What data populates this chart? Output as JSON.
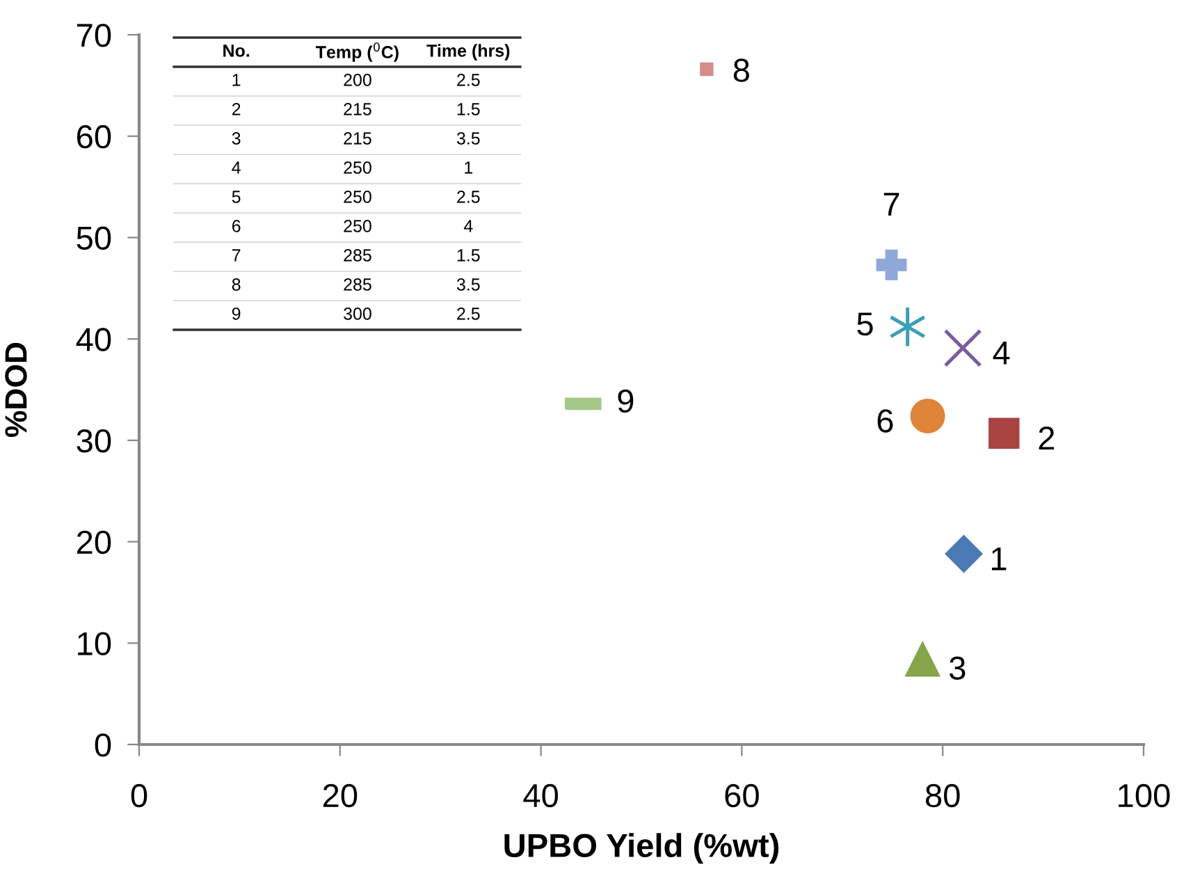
{
  "chart_data": {
    "type": "scatter",
    "xlabel": "UPBO Yield (%wt)",
    "ylabel": "%DOD",
    "xlim": [
      0,
      100
    ],
    "ylim": [
      0,
      70
    ],
    "xticks": [
      0,
      20,
      40,
      60,
      80,
      100
    ],
    "yticks": [
      0,
      10,
      20,
      30,
      40,
      50,
      60,
      70
    ],
    "grid": false,
    "series": [
      {
        "name": "1",
        "color": "#4a7ab5",
        "marker": "diamond",
        "x": [
          82.1
        ],
        "values": [
          18.8
        ]
      },
      {
        "name": "2",
        "color": "#a94442",
        "marker": "square",
        "x": [
          86.1
        ],
        "values": [
          30.7
        ]
      },
      {
        "name": "3",
        "color": "#86a44a",
        "marker": "triangle",
        "x": [
          78.0
        ],
        "values": [
          8.4
        ]
      },
      {
        "name": "4",
        "color": "#7a5c9e",
        "marker": "cross",
        "x": [
          82.0
        ],
        "values": [
          39.1
        ]
      },
      {
        "name": "5",
        "color": "#3b9fb5",
        "marker": "cross",
        "x": [
          76.5
        ],
        "values": [
          41.2
        ]
      },
      {
        "name": "6",
        "color": "#df8539",
        "marker": "circle",
        "x": [
          78.5
        ],
        "values": [
          32.4
        ]
      },
      {
        "name": "7",
        "color": "#8fa8d8",
        "marker": "cross",
        "x": [
          74.9
        ],
        "values": [
          47.3
        ]
      },
      {
        "name": "8",
        "color": "#d48c8c",
        "marker": "square",
        "x": [
          56.5
        ],
        "values": [
          66.6
        ]
      },
      {
        "name": "9",
        "color": "#a6c78a",
        "marker": "square",
        "x": [
          44.2
        ],
        "values": [
          33.6
        ]
      }
    ],
    "annotations": [
      "No.",
      "Temp ($^{0}$C)",
      "Time (hrs)",
      "1",
      "200",
      "2.5",
      "2",
      "215",
      "1.5",
      "3",
      "215",
      "3.5",
      "4",
      "250",
      "1",
      "5",
      "250",
      "2.5",
      "6",
      "250",
      "4",
      "7",
      "285",
      "1.5",
      "8",
      "285",
      "3.5",
      "9",
      "300",
      "2.5"
    ]
  }
}
